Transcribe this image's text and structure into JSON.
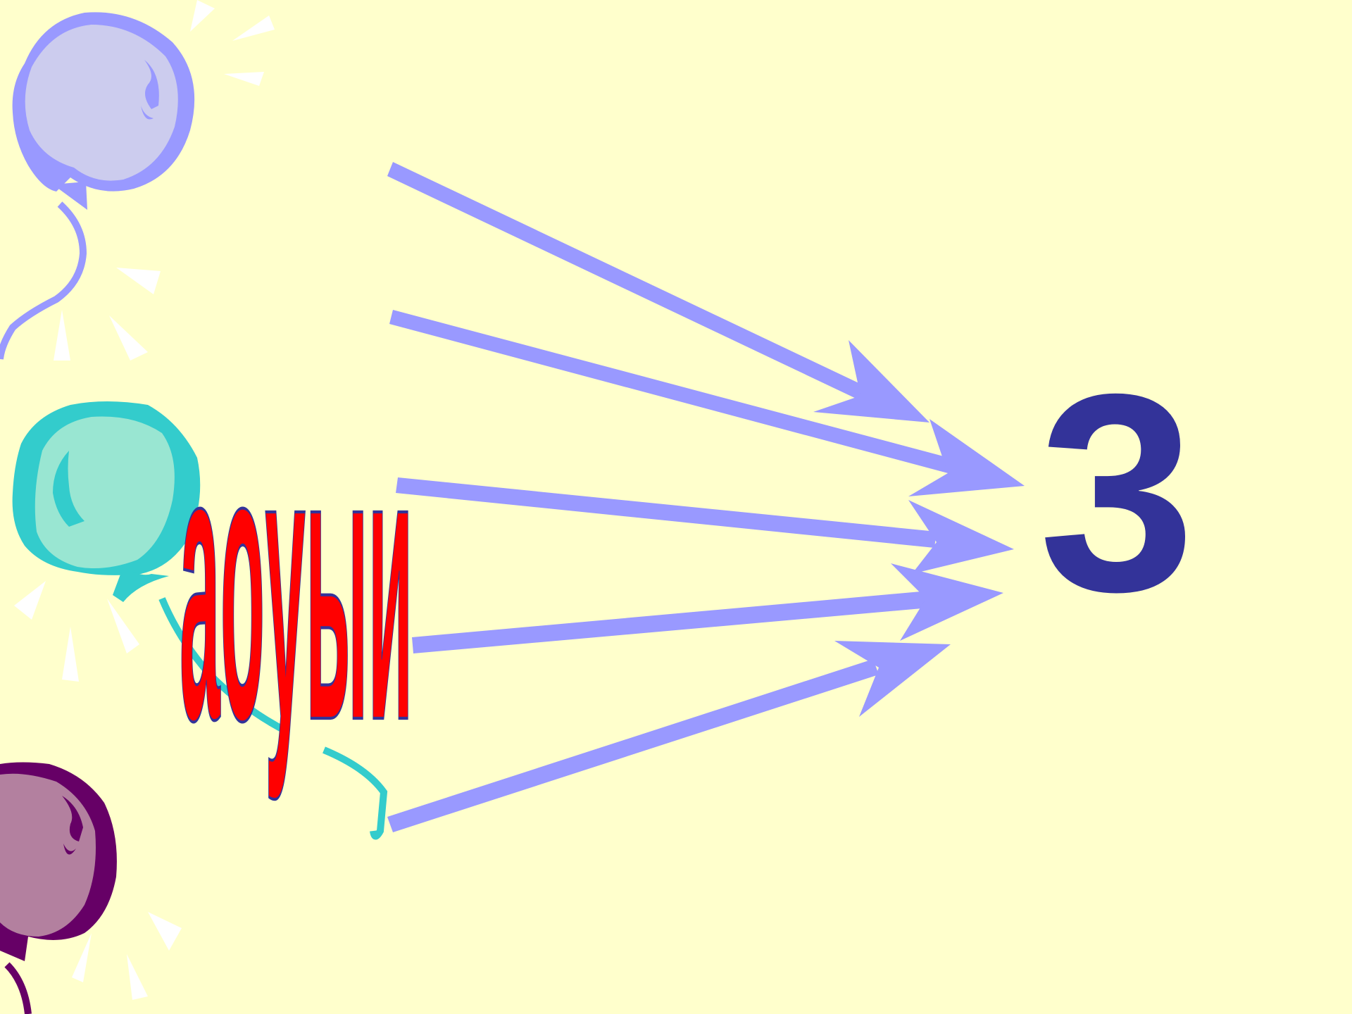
{
  "slide": {
    "background": "#ffffcc",
    "word": "aoyыи",
    "number": "3",
    "colors": {
      "word_fill": "#ff0000",
      "word_outline": "#333399",
      "number": "#333399",
      "arrow": "#9999ff",
      "balloon_blue_fill": "#ccccee",
      "balloon_blue_edge": "#9999ff",
      "balloon_teal_fill": "#99e6d2",
      "balloon_teal_edge": "#33cccc",
      "balloon_purple_fill": "#b3809f",
      "balloon_purple_edge": "#660066",
      "sparkle": "#ffffff"
    },
    "balloons": [
      {
        "name": "balloon-blue-icon",
        "color": "blue"
      },
      {
        "name": "balloon-teal-icon",
        "color": "teal"
      },
      {
        "name": "balloon-purple-icon",
        "color": "purple"
      }
    ],
    "arrow_count": 5
  }
}
